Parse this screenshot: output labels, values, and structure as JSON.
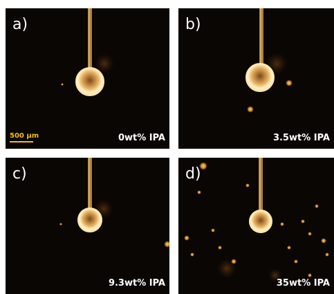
{
  "panels": [
    {
      "label": "a)",
      "caption": "0wt% IPA"
    },
    {
      "label": "b)",
      "caption": "3.5wt% IPA"
    },
    {
      "label": "c)",
      "caption": "9.3wt% IPA"
    },
    {
      "label": "d)",
      "caption": "35wt% IPA"
    }
  ],
  "scale_bar": {
    "label": "500 µm"
  }
}
